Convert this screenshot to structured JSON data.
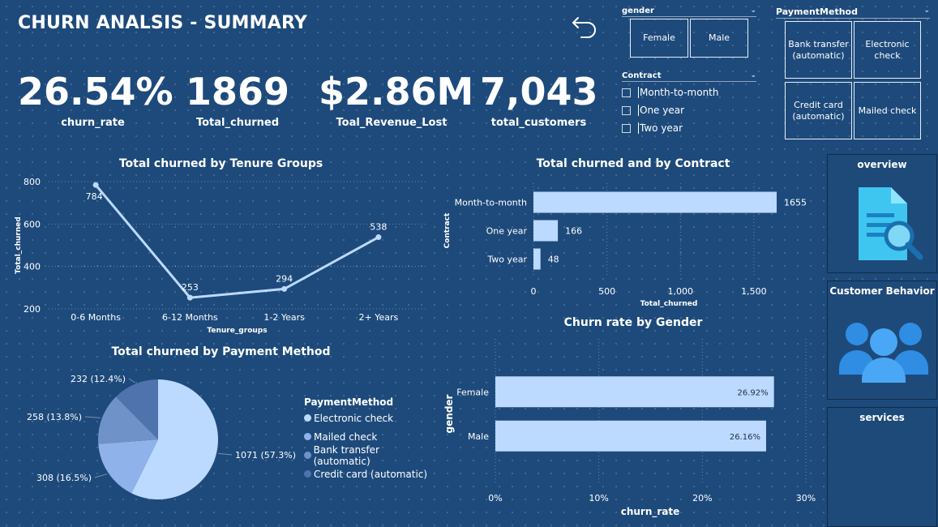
{
  "header": {
    "title": "CHURN ANALSIS - SUMMARY"
  },
  "kpis": [
    {
      "value": "26.54%",
      "label": "churn_rate"
    },
    {
      "value": "1869",
      "label": "Total_churned"
    },
    {
      "value": "$2.86M",
      "label": "Toal_Revenue_Lost"
    },
    {
      "value": "7,043",
      "label": "total_customers"
    }
  ],
  "slicers": {
    "gender": {
      "title": "gender",
      "options": [
        "Female",
        "Male"
      ]
    },
    "contract": {
      "title": "Contract",
      "options": [
        "Month-to-month",
        "One year",
        "Two year"
      ]
    },
    "payment": {
      "title": "PaymentMethod",
      "options": [
        "Bank transfer (automatic)",
        "Electronic check",
        "Credit card (automatic)",
        "Mailed check"
      ]
    }
  },
  "nav": {
    "overview": "overview",
    "behavior": "Customer Behavior",
    "services": "services"
  },
  "icons": {
    "back": "back-arrow-icon",
    "overview": "document-search-icon",
    "behavior": "people-group-icon"
  },
  "colors": {
    "background": "#1d4a7b",
    "bar": "#bcd9ff",
    "line": "#bcd9ff"
  },
  "chart_data": [
    {
      "type": "line",
      "title": "Total churned by Tenure Groups",
      "xlabel": "Tenure_groups",
      "ylabel": "Total_churned",
      "categories": [
        "0-6 Months",
        "6-12 Months",
        "1-2 Years",
        "2+ Years"
      ],
      "values": [
        784,
        253,
        294,
        538
      ],
      "yticks": [
        "200",
        "400",
        "600",
        "800"
      ],
      "ylim": [
        200,
        800
      ],
      "grid": true
    },
    {
      "type": "bar",
      "orientation": "horizontal",
      "title": "Total churned and by Contract",
      "xlabel": "Total_churned",
      "ylabel": "Contract",
      "categories": [
        "Month-to-month",
        "One year",
        "Two year"
      ],
      "values": [
        1655,
        166,
        48
      ],
      "xticks": [
        "0",
        "500",
        "1,000",
        "1,500"
      ],
      "xlim": [
        0,
        1655
      ],
      "grid": true
    },
    {
      "type": "pie",
      "title": "Total churned by Payment Method",
      "legend_title": "PaymentMethod",
      "categories": [
        "Electronic check",
        "Mailed check",
        "Bank transfer (automatic)",
        "Credit card (automatic)"
      ],
      "values": [
        1071,
        308,
        258,
        232
      ],
      "labels": [
        "1071 (57.3%)",
        "308 (16.5%)",
        "258 (13.8%)",
        "232 (12.4%)"
      ],
      "colors": [
        "#bcd9ff",
        "#8fb2ea",
        "#6f92c9",
        "#4f74ad"
      ],
      "legend": "right"
    },
    {
      "type": "bar",
      "orientation": "horizontal",
      "title": "Churn rate by Gender",
      "xlabel": "churn_rate",
      "ylabel": "gender",
      "categories": [
        "Female",
        "Male"
      ],
      "values": [
        26.92,
        26.16
      ],
      "labels": [
        "26.92%",
        "26.16%"
      ],
      "xticks": [
        "0%",
        "10%",
        "20%",
        "30%"
      ],
      "xlim": [
        0,
        30
      ],
      "grid": true
    }
  ]
}
